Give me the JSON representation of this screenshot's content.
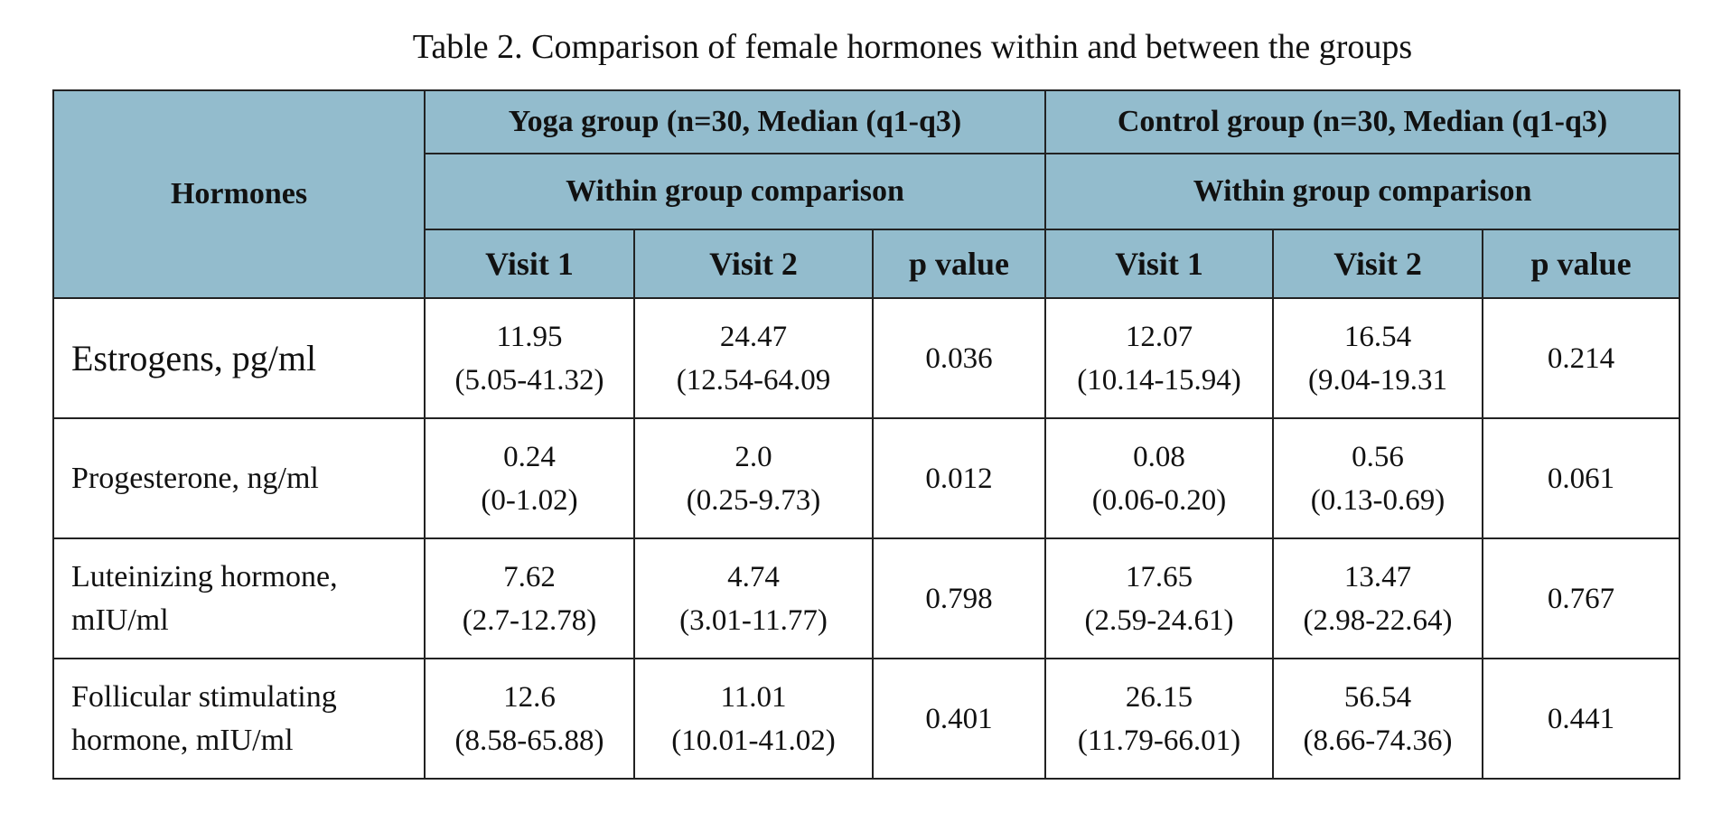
{
  "caption": "Table 2. Comparison of female hormones within and between the groups",
  "header": {
    "hormones": "Hormones",
    "yoga_group": "Yoga group (n=30, Median (q1-q3)",
    "control_group": "Control group (n=30, Median (q1-q3)",
    "yoga_within": "Within group comparison",
    "control_within": "Within group comparison",
    "yoga_visit1": "Visit 1",
    "yoga_visit2": "Visit 2",
    "yoga_p": "p value",
    "control_visit1": "Visit 1",
    "control_visit2": "Visit 2",
    "control_p": "p value"
  },
  "rows": [
    {
      "label": "Estrogens, pg/ml",
      "yoga_v1": {
        "median": "11.95",
        "range": "(5.05-41.32)"
      },
      "yoga_v2": {
        "median": "24.47",
        "range": "(12.54-64.09"
      },
      "yoga_p": "0.036",
      "control_v1": {
        "median": "12.07",
        "range": "(10.14-15.94)"
      },
      "control_v2": {
        "median": "16.54",
        "range": "(9.04-19.31"
      },
      "control_p": "0.214"
    },
    {
      "label": "Progesterone, ng/ml",
      "yoga_v1": {
        "median": "0.24",
        "range": "(0-1.02)"
      },
      "yoga_v2": {
        "median": "2.0",
        "range": "(0.25-9.73)"
      },
      "yoga_p": "0.012",
      "control_v1": {
        "median": "0.08",
        "range": "(0.06-0.20)"
      },
      "control_v2": {
        "median": "0.56",
        "range": "(0.13-0.69)"
      },
      "control_p": "0.061"
    },
    {
      "label_line1": "Luteinizing hormone,",
      "label_line2": "mIU/ml",
      "yoga_v1": {
        "median": "7.62",
        "range": "(2.7-12.78)"
      },
      "yoga_v2": {
        "median": "4.74",
        "range": "(3.01-11.77)"
      },
      "yoga_p": "0.798",
      "control_v1": {
        "median": "17.65",
        "range": "(2.59-24.61)"
      },
      "control_v2": {
        "median": "13.47",
        "range": "(2.98-22.64)"
      },
      "control_p": "0.767"
    },
    {
      "label_line1": "Follicular stimulating",
      "label_line2": "hormone, mIU/ml",
      "yoga_v1": {
        "median": "12.6",
        "range": "(8.58-65.88)"
      },
      "yoga_v2": {
        "median": "11.01",
        "range": "(10.01-41.02)"
      },
      "yoga_p": "0.401",
      "control_v1": {
        "median": "26.15",
        "range": "(11.79-66.01)"
      },
      "control_v2": {
        "median": "56.54",
        "range": "(8.66-74.36)"
      },
      "control_p": "0.441"
    }
  ],
  "colors": {
    "header_bg": "#93bccd",
    "border": "#222222",
    "text": "#111111"
  }
}
